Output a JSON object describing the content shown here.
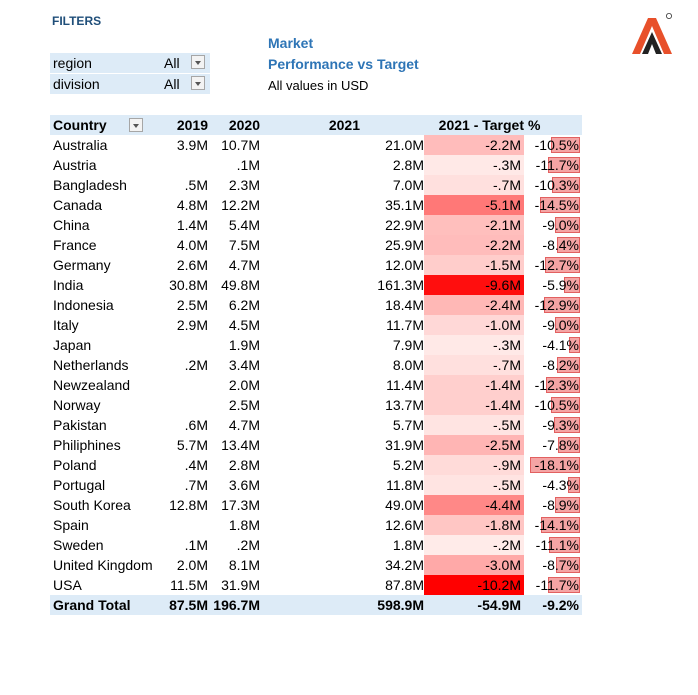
{
  "filters": {
    "title": "FILTERS",
    "items": [
      {
        "label": "region",
        "value": "All"
      },
      {
        "label": "division",
        "value": "All"
      }
    ]
  },
  "report": {
    "title_line1": "Market",
    "title_line2": "Performance vs Target",
    "subtitle": "All values in USD"
  },
  "table": {
    "headers": {
      "country": "Country",
      "y2019": "2019",
      "y2020": "2020",
      "y2021": "2021",
      "diff": "2021 - Target",
      "pct": "%"
    },
    "rows": [
      {
        "country": "Australia",
        "y2019": "3.9M",
        "y2020": "10.7M",
        "y2021": "21.0M",
        "diff": "-2.2M",
        "pct": "-10.5%",
        "diff_val": -2.2,
        "pct_val": -10.5
      },
      {
        "country": "Austria",
        "y2019": "",
        "y2020": ".1M",
        "y2021": "2.8M",
        "diff": "-.3M",
        "pct": "-11.7%",
        "diff_val": -0.3,
        "pct_val": -11.7
      },
      {
        "country": "Bangladesh",
        "y2019": ".5M",
        "y2020": "2.3M",
        "y2021": "7.0M",
        "diff": "-.7M",
        "pct": "-10.3%",
        "diff_val": -0.7,
        "pct_val": -10.3
      },
      {
        "country": "Canada",
        "y2019": "4.8M",
        "y2020": "12.2M",
        "y2021": "35.1M",
        "diff": "-5.1M",
        "pct": "-14.5%",
        "diff_val": -5.1,
        "pct_val": -14.5
      },
      {
        "country": "China",
        "y2019": "1.4M",
        "y2020": "5.4M",
        "y2021": "22.9M",
        "diff": "-2.1M",
        "pct": "-9.0%",
        "diff_val": -2.1,
        "pct_val": -9.0
      },
      {
        "country": "France",
        "y2019": "4.0M",
        "y2020": "7.5M",
        "y2021": "25.9M",
        "diff": "-2.2M",
        "pct": "-8.4%",
        "diff_val": -2.2,
        "pct_val": -8.4
      },
      {
        "country": "Germany",
        "y2019": "2.6M",
        "y2020": "4.7M",
        "y2021": "12.0M",
        "diff": "-1.5M",
        "pct": "-12.7%",
        "diff_val": -1.5,
        "pct_val": -12.7
      },
      {
        "country": "India",
        "y2019": "30.8M",
        "y2020": "49.8M",
        "y2021": "161.3M",
        "diff": "-9.6M",
        "pct": "-5.9%",
        "diff_val": -9.6,
        "pct_val": -5.9
      },
      {
        "country": "Indonesia",
        "y2019": "2.5M",
        "y2020": "6.2M",
        "y2021": "18.4M",
        "diff": "-2.4M",
        "pct": "-12.9%",
        "diff_val": -2.4,
        "pct_val": -12.9
      },
      {
        "country": "Italy",
        "y2019": "2.9M",
        "y2020": "4.5M",
        "y2021": "11.7M",
        "diff": "-1.0M",
        "pct": "-9.0%",
        "diff_val": -1.0,
        "pct_val": -9.0
      },
      {
        "country": "Japan",
        "y2019": "",
        "y2020": "1.9M",
        "y2021": "7.9M",
        "diff": "-.3M",
        "pct": "-4.1%",
        "diff_val": -0.3,
        "pct_val": -4.1
      },
      {
        "country": "Netherlands",
        "y2019": ".2M",
        "y2020": "3.4M",
        "y2021": "8.0M",
        "diff": "-.7M",
        "pct": "-8.2%",
        "diff_val": -0.7,
        "pct_val": -8.2
      },
      {
        "country": "Newzealand",
        "y2019": "",
        "y2020": "2.0M",
        "y2021": "11.4M",
        "diff": "-1.4M",
        "pct": "-12.3%",
        "diff_val": -1.4,
        "pct_val": -12.3
      },
      {
        "country": "Norway",
        "y2019": "",
        "y2020": "2.5M",
        "y2021": "13.7M",
        "diff": "-1.4M",
        "pct": "-10.5%",
        "diff_val": -1.4,
        "pct_val": -10.5
      },
      {
        "country": "Pakistan",
        "y2019": ".6M",
        "y2020": "4.7M",
        "y2021": "5.7M",
        "diff": "-.5M",
        "pct": "-9.3%",
        "diff_val": -0.5,
        "pct_val": -9.3
      },
      {
        "country": "Philiphines",
        "y2019": "5.7M",
        "y2020": "13.4M",
        "y2021": "31.9M",
        "diff": "-2.5M",
        "pct": "-7.8%",
        "diff_val": -2.5,
        "pct_val": -7.8
      },
      {
        "country": "Poland",
        "y2019": ".4M",
        "y2020": "2.8M",
        "y2021": "5.2M",
        "diff": "-.9M",
        "pct": "-18.1%",
        "diff_val": -0.9,
        "pct_val": -18.1
      },
      {
        "country": "Portugal",
        "y2019": ".7M",
        "y2020": "3.6M",
        "y2021": "11.8M",
        "diff": "-.5M",
        "pct": "-4.3%",
        "diff_val": -0.5,
        "pct_val": -4.3
      },
      {
        "country": "South Korea",
        "y2019": "12.8M",
        "y2020": "17.3M",
        "y2021": "49.0M",
        "diff": "-4.4M",
        "pct": "-8.9%",
        "diff_val": -4.4,
        "pct_val": -8.9
      },
      {
        "country": "Spain",
        "y2019": "",
        "y2020": "1.8M",
        "y2021": "12.6M",
        "diff": "-1.8M",
        "pct": "-14.1%",
        "diff_val": -1.8,
        "pct_val": -14.1
      },
      {
        "country": "Sweden",
        "y2019": ".1M",
        "y2020": ".2M",
        "y2021": "1.8M",
        "diff": "-.2M",
        "pct": "-11.1%",
        "diff_val": -0.2,
        "pct_val": -11.1
      },
      {
        "country": "United Kingdom",
        "y2019": "2.0M",
        "y2020": "8.1M",
        "y2021": "34.2M",
        "diff": "-3.0M",
        "pct": "-8.7%",
        "diff_val": -3.0,
        "pct_val": -8.7
      },
      {
        "country": "USA",
        "y2019": "11.5M",
        "y2020": "31.9M",
        "y2021": "87.8M",
        "diff": "-10.2M",
        "pct": "-11.7%",
        "diff_val": -10.2,
        "pct_val": -11.7
      }
    ],
    "total": {
      "country": "Grand Total",
      "y2019": "87.5M",
      "y2020": "196.7M",
      "y2021": "598.9M",
      "diff": "-54.9M",
      "pct": "-9.2%"
    }
  },
  "colors": {
    "header_bg": "#ddebf7",
    "title_blue": "#2e75b6",
    "filters_blue": "#1f4e79",
    "heat_max": "#ff0000",
    "heat_min": "#fdf0ee",
    "pct_bar": "#f4a4a4"
  },
  "logo": {
    "icon": "company-logo-icon"
  }
}
